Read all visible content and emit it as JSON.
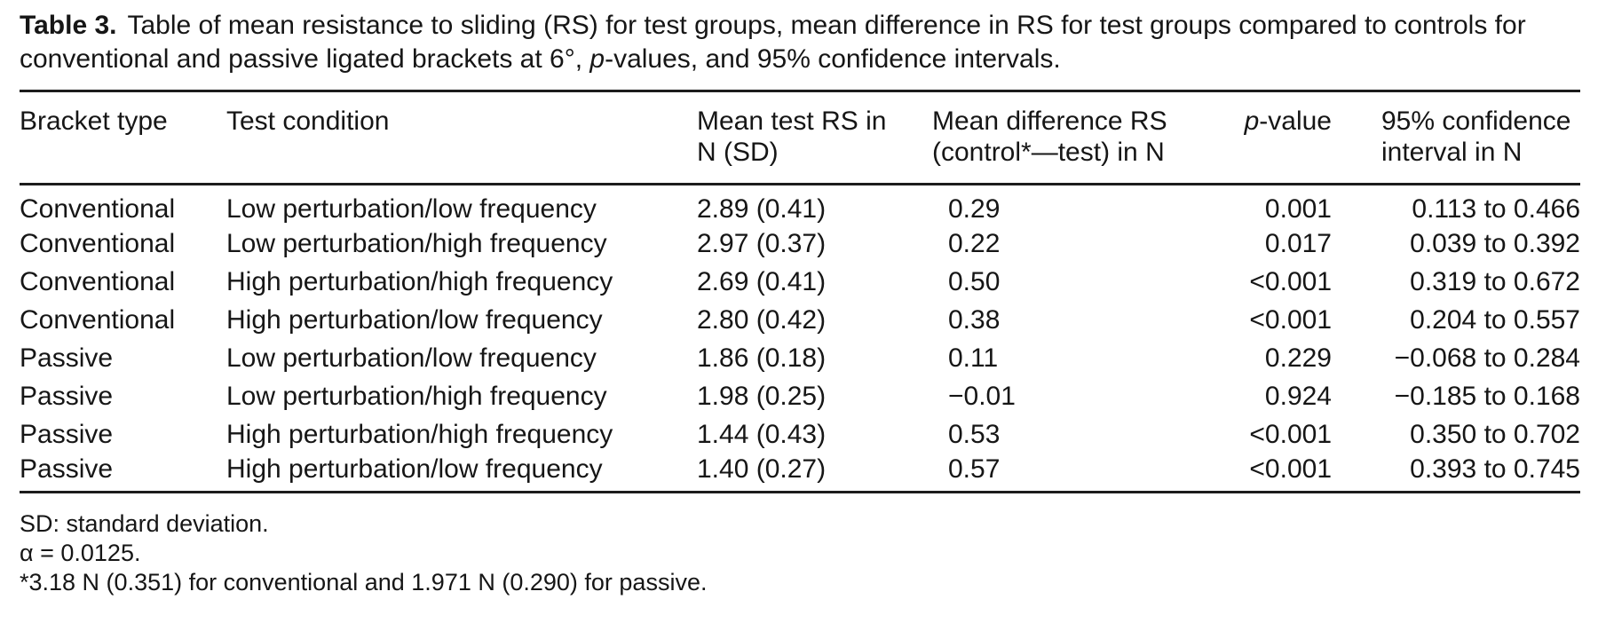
{
  "caption": {
    "label": "Table 3.",
    "segments": [
      {
        "t": "Table of mean resistance to sliding (RS) for test groups, mean difference in RS for test groups compared to controls for conventional and passive ligated brackets at 6°, "
      },
      {
        "t": "p",
        "i": true
      },
      {
        "t": "-values, and 95% confidence intervals."
      }
    ]
  },
  "table": {
    "columns": [
      {
        "id": "bracket-type",
        "align": "left",
        "header_lines": [
          [
            {
              "t": "Bracket type"
            }
          ]
        ]
      },
      {
        "id": "test-condition",
        "align": "left",
        "header_lines": [
          [
            {
              "t": "Test condition"
            }
          ]
        ]
      },
      {
        "id": "mean-test-rs",
        "align": "left",
        "header_lines": [
          [
            {
              "t": "Mean test RS in"
            }
          ],
          [
            {
              "t": "N (SD)"
            }
          ]
        ]
      },
      {
        "id": "mean-difference",
        "align": "left",
        "header_lines": [
          [
            {
              "t": "Mean difference RS"
            }
          ],
          [
            {
              "t": "(control*—test) in N"
            }
          ]
        ]
      },
      {
        "id": "p-value",
        "align": "right",
        "header_lines": [
          [
            {
              "t": "p",
              "i": true
            },
            {
              "t": "-value"
            }
          ]
        ]
      },
      {
        "id": "confidence-interval",
        "align": "right",
        "header_align": "left",
        "header_lines": [
          [
            {
              "t": "95% confidence"
            }
          ],
          [
            {
              "t": "interval in N"
            }
          ]
        ]
      }
    ],
    "rows": [
      [
        "Conventional",
        "Low perturbation/low frequency",
        "2.89 (0.41)",
        "0.29",
        "0.001",
        "0.113 to 0.466"
      ],
      [
        "Conventional",
        "Low perturbation/high frequency",
        "2.97 (0.37)",
        "0.22",
        "0.017",
        "0.039 to 0.392"
      ],
      [
        "Conventional",
        "High perturbation/high frequency",
        "2.69 (0.41)",
        "0.50",
        "<0.001",
        "0.319 to 0.672"
      ],
      [
        "Conventional",
        "High perturbation/low frequency",
        "2.80 (0.42)",
        "0.38",
        "<0.001",
        "0.204 to 0.557"
      ],
      [
        "Passive",
        "Low perturbation/low frequency",
        "1.86 (0.18)",
        "0.11",
        "0.229",
        "−0.068 to 0.284"
      ],
      [
        "Passive",
        "Low perturbation/high frequency",
        "1.98 (0.25)",
        "−0.01",
        "0.924",
        "−0.185 to 0.168"
      ],
      [
        "Passive",
        "High perturbation/high frequency",
        "1.44 (0.43)",
        "0.53",
        "<0.001",
        "0.350 to 0.702"
      ],
      [
        "Passive",
        "High perturbation/low frequency",
        "1.40 (0.27)",
        "0.57",
        "<0.001",
        "0.393 to 0.745"
      ]
    ]
  },
  "footnotes": [
    "SD: standard deviation.",
    "α = 0.0125.",
    "*3.18 N (0.351) for conventional and 1.971 N (0.290) for passive."
  ],
  "colors": {
    "text": "#161616",
    "rule": "#1c1c1c",
    "background": "#ffffff"
  }
}
